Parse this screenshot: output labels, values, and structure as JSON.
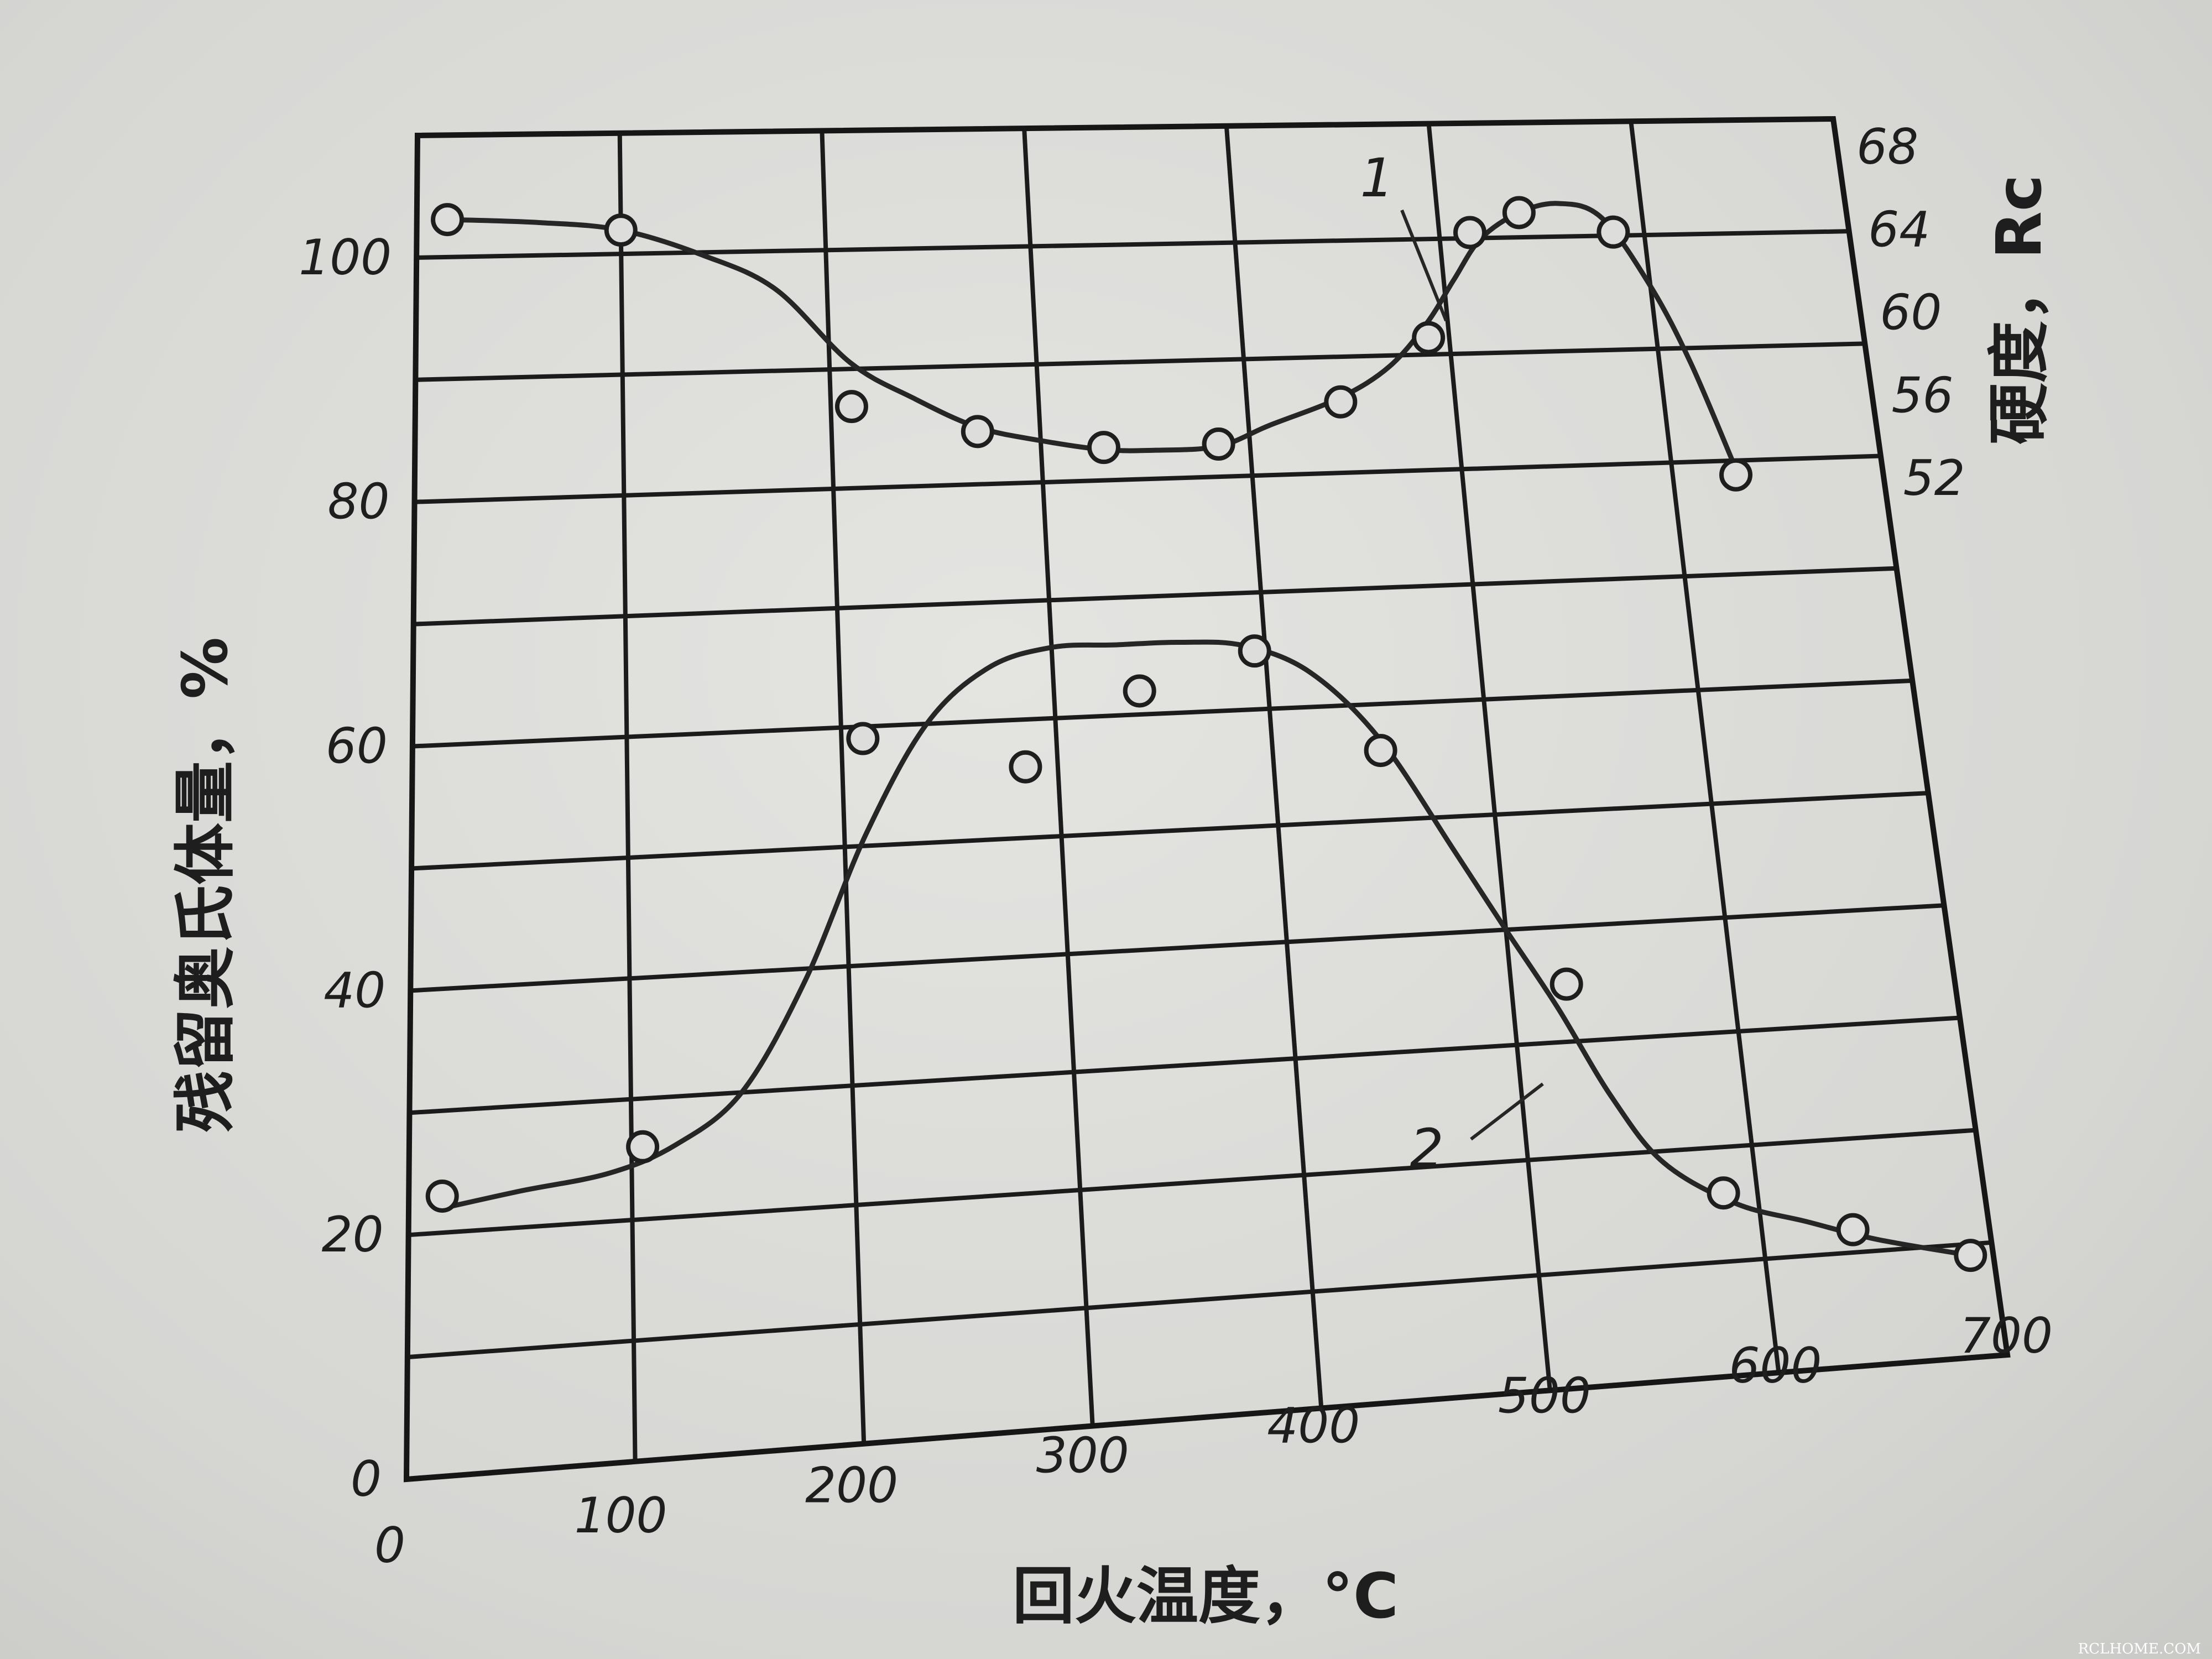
{
  "chart_data": {
    "type": "line",
    "xlabel": "回火温度，°C",
    "ylabel": "残留奥氏体量，%",
    "y2label": "硬度，Rc",
    "xlim": [
      0,
      700
    ],
    "ylim": [
      0,
      110
    ],
    "y2lim": [
      52,
      68
    ],
    "x_ticks": [
      "0",
      "100",
      "200",
      "300",
      "400",
      "500",
      "600",
      "700"
    ],
    "y_ticks": [
      "0",
      "20",
      "40",
      "60",
      "80",
      "100"
    ],
    "y2_ticks": [
      "52",
      "56",
      "60",
      "64",
      "68"
    ],
    "grid": true,
    "series": [
      {
        "name": "1",
        "axis": "right",
        "x": [
          15,
          100,
          210,
          270,
          330,
          385,
          445,
          490,
          515,
          540,
          585,
          630
        ],
        "y": [
          65.6,
          65.0,
          56.8,
          55.5,
          54.6,
          54.6,
          56.4,
          59.3,
          64.2,
          65.1,
          64.1,
          52.4
        ],
        "curve_x": [
          15,
          60,
          100,
          140,
          175,
          210,
          240,
          270,
          300,
          330,
          355,
          385,
          410,
          445,
          470,
          490,
          505,
          520,
          540,
          560,
          580,
          600,
          615,
          630
        ],
        "curve_y": [
          65.6,
          65.4,
          65.0,
          63.8,
          62.2,
          58.8,
          57.1,
          55.7,
          55.0,
          54.5,
          54.4,
          54.5,
          55.4,
          56.6,
          58.0,
          60.0,
          62.0,
          63.9,
          65.1,
          65.5,
          64.8,
          61.5,
          57.8,
          52.8
        ]
      },
      {
        "name": "2",
        "axis": "left",
        "x": [
          15,
          105,
          210,
          285,
          340,
          395,
          450,
          525,
          585,
          640,
          690
        ],
        "y": [
          23,
          26,
          59,
          56,
          62,
          65,
          56,
          35,
          16,
          12,
          9
        ],
        "curve_x": [
          15,
          50,
          90,
          120,
          150,
          180,
          210,
          240,
          270,
          300,
          330,
          360,
          390,
          420,
          450,
          480,
          500,
          520,
          540,
          560,
          590,
          620,
          650,
          690
        ],
        "curve_y": [
          22,
          23,
          24,
          26,
          30,
          39,
          51,
          60,
          64.5,
          66,
          66,
          66,
          65.5,
          63,
          57,
          47,
          40,
          33,
          25,
          19,
          15,
          13,
          11,
          9
        ]
      }
    ]
  },
  "watermark": "RCLHOME.COM"
}
